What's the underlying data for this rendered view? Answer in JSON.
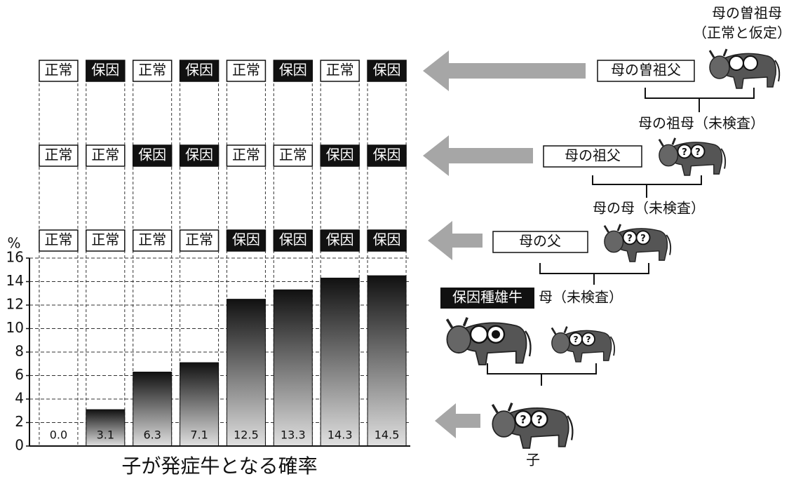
{
  "chart_data": {
    "type": "bar",
    "categories": [
      null,
      null,
      null,
      null,
      null,
      null,
      null,
      null
    ],
    "values": [
      0,
      3.1,
      6.3,
      7.1,
      12.5,
      13.3,
      14.3,
      14.5
    ],
    "value_labels": [
      "0.0",
      "3.1",
      "6.3",
      "7.1",
      "12.5",
      "13.3",
      "14.3",
      "14.5"
    ],
    "ylim": [
      0,
      16
    ],
    "yticks": [
      0,
      2,
      4,
      6,
      8,
      10,
      12,
      14,
      16
    ],
    "y_label": "%",
    "x_label": "子が発症牛となる確率",
    "grid": true
  },
  "status_rows": [
    [
      "正常",
      "保因",
      "正常",
      "保因",
      "正常",
      "保因",
      "正常",
      "保因"
    ],
    [
      "正常",
      "正常",
      "保因",
      "保因",
      "正常",
      "正常",
      "保因",
      "保因"
    ],
    [
      "正常",
      "正常",
      "正常",
      "正常",
      "保因",
      "保因",
      "保因",
      "保因"
    ]
  ],
  "pedigree": {
    "great_grandmother": "母の曽祖母",
    "great_grandmother_note": "（正常と仮定）",
    "great_grandfather": "母の曽祖父",
    "grandmother": "母の祖母（未検査）",
    "grandfather": "母の祖父",
    "mothers_mother": "母の母（未検査）",
    "mothers_father": "母の父",
    "sire": "保因種雄牛",
    "mother": "母（未検査）",
    "calf": "子",
    "unknown_mark": "?"
  }
}
